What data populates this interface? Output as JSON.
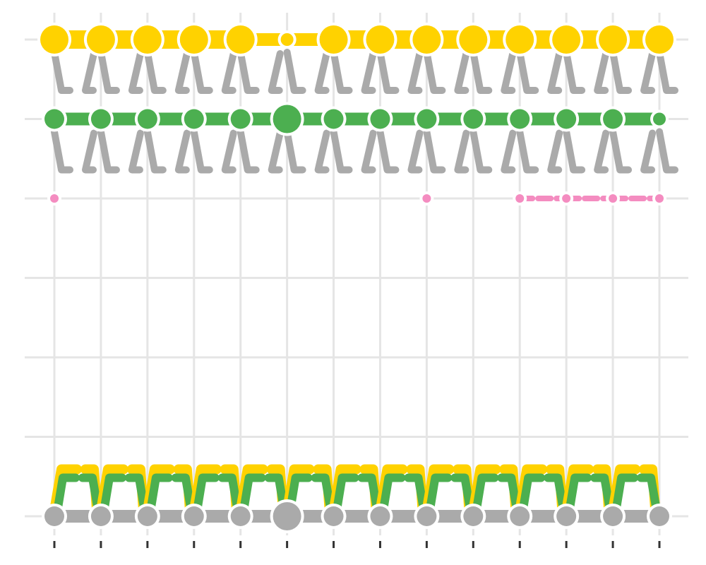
{
  "chart_data": {
    "type": "alluvial",
    "title": "",
    "xlabel": "",
    "ylabel": "",
    "x": [
      1,
      2,
      3,
      4,
      5,
      6,
      7,
      8,
      9,
      10,
      11,
      12,
      13,
      14
    ],
    "x_tick_labels": [],
    "y_tick_labels": [],
    "grid": true,
    "legend": "none",
    "row_levels": 7,
    "colors": {
      "gold": "#FFD200",
      "green": "#4CAF50",
      "gray": "#AAAAAA",
      "pink": "#F48CC0",
      "grid": "#E5E5E5",
      "tick": "#333333"
    },
    "series": [
      {
        "color": "gold",
        "level": [
          1,
          1,
          1,
          1,
          1,
          1,
          1,
          1,
          1,
          1,
          1,
          1,
          1,
          1
        ],
        "size": [
          3,
          3,
          3,
          3,
          3,
          1,
          3,
          3,
          3,
          3,
          3,
          3,
          3,
          3
        ]
      },
      {
        "color": "green",
        "level": [
          2,
          2,
          2,
          2,
          2,
          2,
          2,
          2,
          2,
          2,
          2,
          2,
          2,
          2
        ],
        "size": [
          2,
          2,
          2,
          2,
          2,
          3,
          2,
          2,
          2,
          2,
          2,
          2,
          2,
          1
        ]
      },
      {
        "color": "pink",
        "level": [
          3,
          null,
          null,
          null,
          null,
          null,
          null,
          null,
          3,
          null,
          3,
          3,
          3,
          3
        ],
        "size": [
          1,
          null,
          null,
          null,
          null,
          null,
          null,
          null,
          1,
          null,
          1,
          1,
          1,
          1
        ]
      },
      {
        "color": "gray",
        "level": [
          7,
          7,
          7,
          7,
          7,
          7,
          7,
          7,
          7,
          7,
          7,
          7,
          7,
          7
        ],
        "size": [
          2,
          2,
          2,
          2,
          2,
          3,
          2,
          2,
          2,
          2,
          2,
          2,
          2,
          2
        ]
      }
    ],
    "flows": [
      {
        "color": "gray",
        "from_level": 1,
        "to_level": 2
      },
      {
        "color": "gray",
        "from_level": 2,
        "to_level": 3
      },
      {
        "color": "green",
        "from_level": 7,
        "to_level": 6
      },
      {
        "color": "gold",
        "from_level": 7,
        "to_level": 6
      },
      {
        "color": "green",
        "from_level": 1,
        "to_level": 1
      },
      {
        "color": "gold",
        "from_level": 2,
        "to_level": 2
      },
      {
        "color": "pink",
        "from_level": 2,
        "to_level": 2
      },
      {
        "color": "pink",
        "from_level": 3,
        "to_level": 3
      }
    ]
  }
}
